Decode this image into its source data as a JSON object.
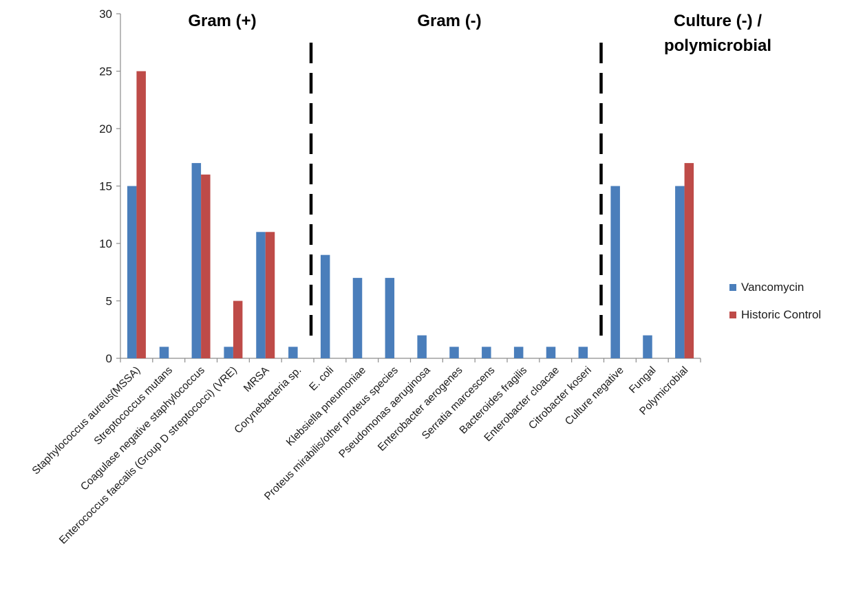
{
  "chart_data": {
    "type": "bar",
    "ylim": [
      0,
      30
    ],
    "yticks": [
      "0",
      "5",
      "10",
      "15",
      "20",
      "25",
      "30"
    ],
    "categories": [
      "Staphylococcus aureus(MSSA)",
      "Streptococcus mutans",
      "Coagulase negative staphylococcus",
      "Enterococcus faecalis (Group D streptococci) (VRE)",
      "MRSA",
      "Corynebacteria sp.",
      "E. coli",
      "Klebsiella pneumoniae",
      "Proteus mirabilis/other proteus species",
      "Pseudomonas aeruginosa",
      "Enterobacter aerogenes",
      "Serratia marcescens",
      "Bacteroides fragilis",
      "Enterobacter cloacae",
      "Citrobacter koseri",
      "Culture negative",
      "Fungal",
      "Polymicrobial"
    ],
    "series": [
      {
        "name": "Vancomycin",
        "color": "#4a7ebb",
        "values": [
          15,
          1,
          17,
          1,
          11,
          1,
          9,
          7,
          7,
          2,
          1,
          1,
          1,
          1,
          1,
          15,
          2,
          15
        ]
      },
      {
        "name": "Historic Control",
        "color": "#be4b48",
        "values": [
          25,
          0,
          16,
          5,
          11,
          0,
          0,
          0,
          0,
          0,
          0,
          0,
          0,
          0,
          0,
          0,
          0,
          17
        ]
      }
    ],
    "group_titles": [
      {
        "lines": [
          "Gram (+)"
        ]
      },
      {
        "lines": [
          "Gram (-)"
        ]
      },
      {
        "lines": [
          "Culture (-) /",
          "polymicrobial"
        ]
      }
    ],
    "dividers_after": [
      5,
      14
    ],
    "legend_position": "right",
    "grid": false
  }
}
